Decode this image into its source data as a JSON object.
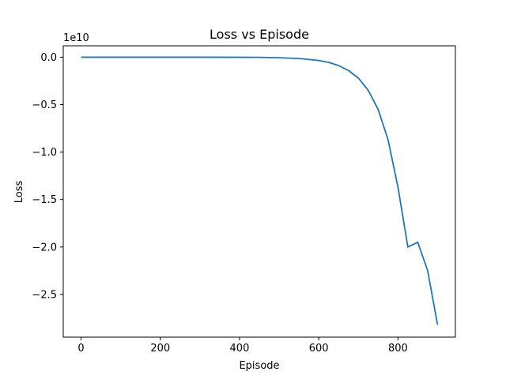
{
  "chart_data": {
    "type": "line",
    "title": "Loss vs Episode",
    "xlabel": "Episode",
    "ylabel": "Loss",
    "y_offset_label": "1e10",
    "xlim": [
      -45,
      945
    ],
    "ylim": [
      -2.95,
      0.12
    ],
    "x_ticks": [
      {
        "value": 0,
        "label": "0"
      },
      {
        "value": 200,
        "label": "200"
      },
      {
        "value": 400,
        "label": "400"
      },
      {
        "value": 600,
        "label": "600"
      },
      {
        "value": 800,
        "label": "800"
      }
    ],
    "y_ticks": [
      {
        "value": 0.0,
        "label": "0.0"
      },
      {
        "value": -0.5,
        "label": "−0.5"
      },
      {
        "value": -1.0,
        "label": "−1.0"
      },
      {
        "value": -1.5,
        "label": "−1.5"
      },
      {
        "value": -2.0,
        "label": "−2.0"
      },
      {
        "value": -2.5,
        "label": "−2.5"
      }
    ],
    "grid": false,
    "legend": "none",
    "series": [
      {
        "color": "#1f77b4",
        "x": [
          0,
          100,
          200,
          300,
          400,
          450,
          500,
          550,
          600,
          625,
          650,
          675,
          700,
          725,
          750,
          775,
          800,
          825,
          850,
          875,
          900
        ],
        "y": [
          0.0,
          0.0,
          0.0,
          0.0,
          -0.001,
          -0.002,
          -0.006,
          -0.014,
          -0.035,
          -0.055,
          -0.088,
          -0.14,
          -0.22,
          -0.35,
          -0.55,
          -0.87,
          -1.37,
          -2.0,
          -1.95,
          -2.25,
          -2.82
        ]
      }
    ]
  }
}
